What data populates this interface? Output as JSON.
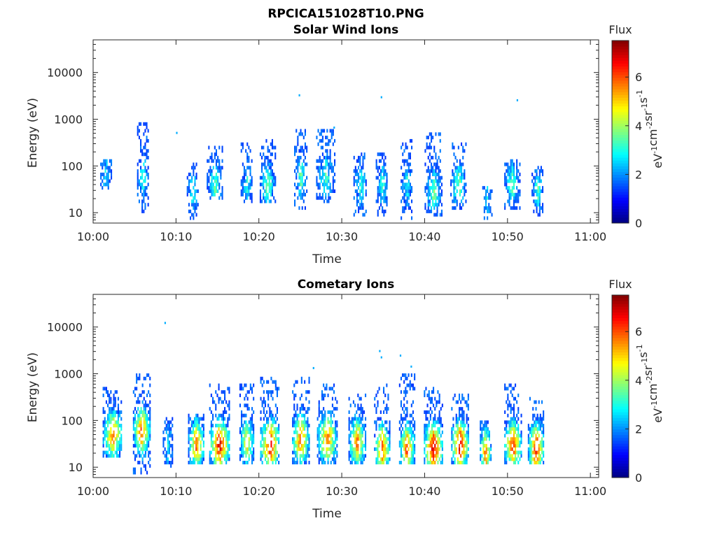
{
  "figure_title": "RPCICA151028T10.PNG",
  "chart_data": [
    {
      "type": "heatmap",
      "title": "Solar Wind Ions",
      "xlabel": "Time",
      "ylabel": "Energy (eV)",
      "yscale": "log",
      "ylim": [
        6,
        50000
      ],
      "xlim": [
        "10:00",
        "11:01"
      ],
      "xticks": [
        "10:00",
        "10:10",
        "10:20",
        "10:30",
        "10:40",
        "10:50",
        "11:00"
      ],
      "yticks": [
        "10",
        "100",
        "1000",
        "10000"
      ],
      "grid": false,
      "colorbar": {
        "title": "Flux",
        "label": "eV-1cm-2sr-1s-1",
        "range": [
          0,
          7.5
        ],
        "ticks": [
          "0",
          "2",
          "4",
          "6"
        ],
        "colormap": "jet"
      },
      "bursts": [
        {
          "t": 1.5,
          "emin": 30,
          "emax": 150,
          "peak": 2.8,
          "dur": 1.3,
          "ecenter": 60
        },
        {
          "t": 6.0,
          "emin": 8,
          "emax": 900,
          "peak": 3.2,
          "dur": 1.4,
          "ecenter": 60
        },
        {
          "t": 12.0,
          "emin": 7,
          "emax": 120,
          "peak": 3.0,
          "dur": 1.4,
          "ecenter": 30
        },
        {
          "t": 14.6,
          "emin": 20,
          "emax": 250,
          "peak": 3.6,
          "dur": 1.8,
          "ecenter": 40
        },
        {
          "t": 18.5,
          "emin": 15,
          "emax": 300,
          "peak": 3.0,
          "dur": 1.4,
          "ecenter": 40
        },
        {
          "t": 21.0,
          "emin": 15,
          "emax": 400,
          "peak": 3.8,
          "dur": 1.8,
          "ecenter": 40
        },
        {
          "t": 25.0,
          "emin": 12,
          "emax": 600,
          "peak": 3.5,
          "dur": 1.5,
          "ecenter": 60
        },
        {
          "t": 28.0,
          "emin": 15,
          "emax": 600,
          "peak": 3.2,
          "dur": 2.2,
          "ecenter": 60
        },
        {
          "t": 32.2,
          "emin": 8,
          "emax": 200,
          "peak": 3.2,
          "dur": 1.6,
          "ecenter": 40
        },
        {
          "t": 34.8,
          "emin": 8,
          "emax": 200,
          "peak": 3.3,
          "dur": 1.4,
          "ecenter": 40
        },
        {
          "t": 37.8,
          "emin": 7,
          "emax": 400,
          "peak": 3.0,
          "dur": 1.4,
          "ecenter": 40
        },
        {
          "t": 41.0,
          "emin": 8,
          "emax": 500,
          "peak": 3.8,
          "dur": 2.0,
          "ecenter": 30
        },
        {
          "t": 44.0,
          "emin": 12,
          "emax": 300,
          "peak": 3.8,
          "dur": 1.8,
          "ecenter": 40
        },
        {
          "t": 47.5,
          "emin": 7,
          "emax": 40,
          "peak": 2.6,
          "dur": 1.1,
          "ecenter": 20
        },
        {
          "t": 50.5,
          "emin": 12,
          "emax": 130,
          "peak": 3.5,
          "dur": 1.8,
          "ecenter": 40
        },
        {
          "t": 53.6,
          "emin": 8,
          "emax": 100,
          "peak": 3.3,
          "dur": 1.4,
          "ecenter": 30
        }
      ],
      "points": [
        {
          "t": 24.8,
          "e": 3200
        },
        {
          "t": 34.7,
          "e": 2900
        },
        {
          "t": 51.1,
          "e": 2500
        },
        {
          "t": 10.0,
          "e": 500
        },
        {
          "t": 29.0,
          "e": 650
        }
      ]
    },
    {
      "type": "heatmap",
      "title": "Cometary Ions",
      "xlabel": "Time",
      "ylabel": "Energy (eV)",
      "yscale": "log",
      "ylim": [
        6,
        50000
      ],
      "xlim": [
        "10:00",
        "11:01"
      ],
      "xticks": [
        "10:00",
        "10:10",
        "10:20",
        "10:30",
        "10:40",
        "10:50",
        "11:00"
      ],
      "yticks": [
        "10",
        "100",
        "1000",
        "10000"
      ],
      "grid": false,
      "colorbar": {
        "title": "Flux",
        "label": "eV-1cm-2sr-1s-1",
        "range": [
          0,
          7.5
        ],
        "ticks": [
          "0",
          "2",
          "4",
          "6"
        ],
        "colormap": "jet"
      },
      "bursts": [
        {
          "t": 2.3,
          "emin": 15,
          "emax": 500,
          "peak": 5.8,
          "dur": 2.3,
          "ecenter": 50
        },
        {
          "t": 5.8,
          "emin": 7,
          "emax": 1000,
          "peak": 6.0,
          "dur": 2.0,
          "ecenter": 60
        },
        {
          "t": 9.0,
          "emin": 8,
          "emax": 120,
          "peak": 3.0,
          "dur": 1.2,
          "ecenter": 30
        },
        {
          "t": 12.4,
          "emin": 12,
          "emax": 150,
          "peak": 6.0,
          "dur": 1.9,
          "ecenter": 30
        },
        {
          "t": 15.2,
          "emin": 12,
          "emax": 600,
          "peak": 6.8,
          "dur": 2.4,
          "ecenter": 30
        },
        {
          "t": 18.5,
          "emin": 12,
          "emax": 600,
          "peak": 5.0,
          "dur": 1.7,
          "ecenter": 35
        },
        {
          "t": 21.3,
          "emin": 12,
          "emax": 800,
          "peak": 6.8,
          "dur": 2.3,
          "ecenter": 30
        },
        {
          "t": 25.0,
          "emin": 12,
          "emax": 800,
          "peak": 6.2,
          "dur": 2.0,
          "ecenter": 40
        },
        {
          "t": 28.2,
          "emin": 12,
          "emax": 600,
          "peak": 5.8,
          "dur": 2.4,
          "ecenter": 40
        },
        {
          "t": 31.8,
          "emin": 12,
          "emax": 350,
          "peak": 5.8,
          "dur": 2.0,
          "ecenter": 35
        },
        {
          "t": 34.8,
          "emin": 12,
          "emax": 600,
          "peak": 6.2,
          "dur": 1.8,
          "ecenter": 25
        },
        {
          "t": 37.8,
          "emin": 12,
          "emax": 1000,
          "peak": 6.2,
          "dur": 1.8,
          "ecenter": 25
        },
        {
          "t": 41.0,
          "emin": 12,
          "emax": 500,
          "peak": 7.2,
          "dur": 2.2,
          "ecenter": 25
        },
        {
          "t": 44.2,
          "emin": 12,
          "emax": 400,
          "peak": 7.0,
          "dur": 2.0,
          "ecenter": 30
        },
        {
          "t": 47.3,
          "emin": 12,
          "emax": 100,
          "peak": 6.0,
          "dur": 1.3,
          "ecenter": 20
        },
        {
          "t": 50.6,
          "emin": 12,
          "emax": 600,
          "peak": 6.5,
          "dur": 2.0,
          "ecenter": 30
        },
        {
          "t": 53.4,
          "emin": 12,
          "emax": 300,
          "peak": 6.8,
          "dur": 1.9,
          "ecenter": 25
        }
      ],
      "points": [
        {
          "t": 8.6,
          "e": 12000
        },
        {
          "t": 34.5,
          "e": 3000
        },
        {
          "t": 34.7,
          "e": 2200
        },
        {
          "t": 37.0,
          "e": 2400
        },
        {
          "t": 38.3,
          "e": 1400
        },
        {
          "t": 26.5,
          "e": 1300
        }
      ]
    }
  ]
}
